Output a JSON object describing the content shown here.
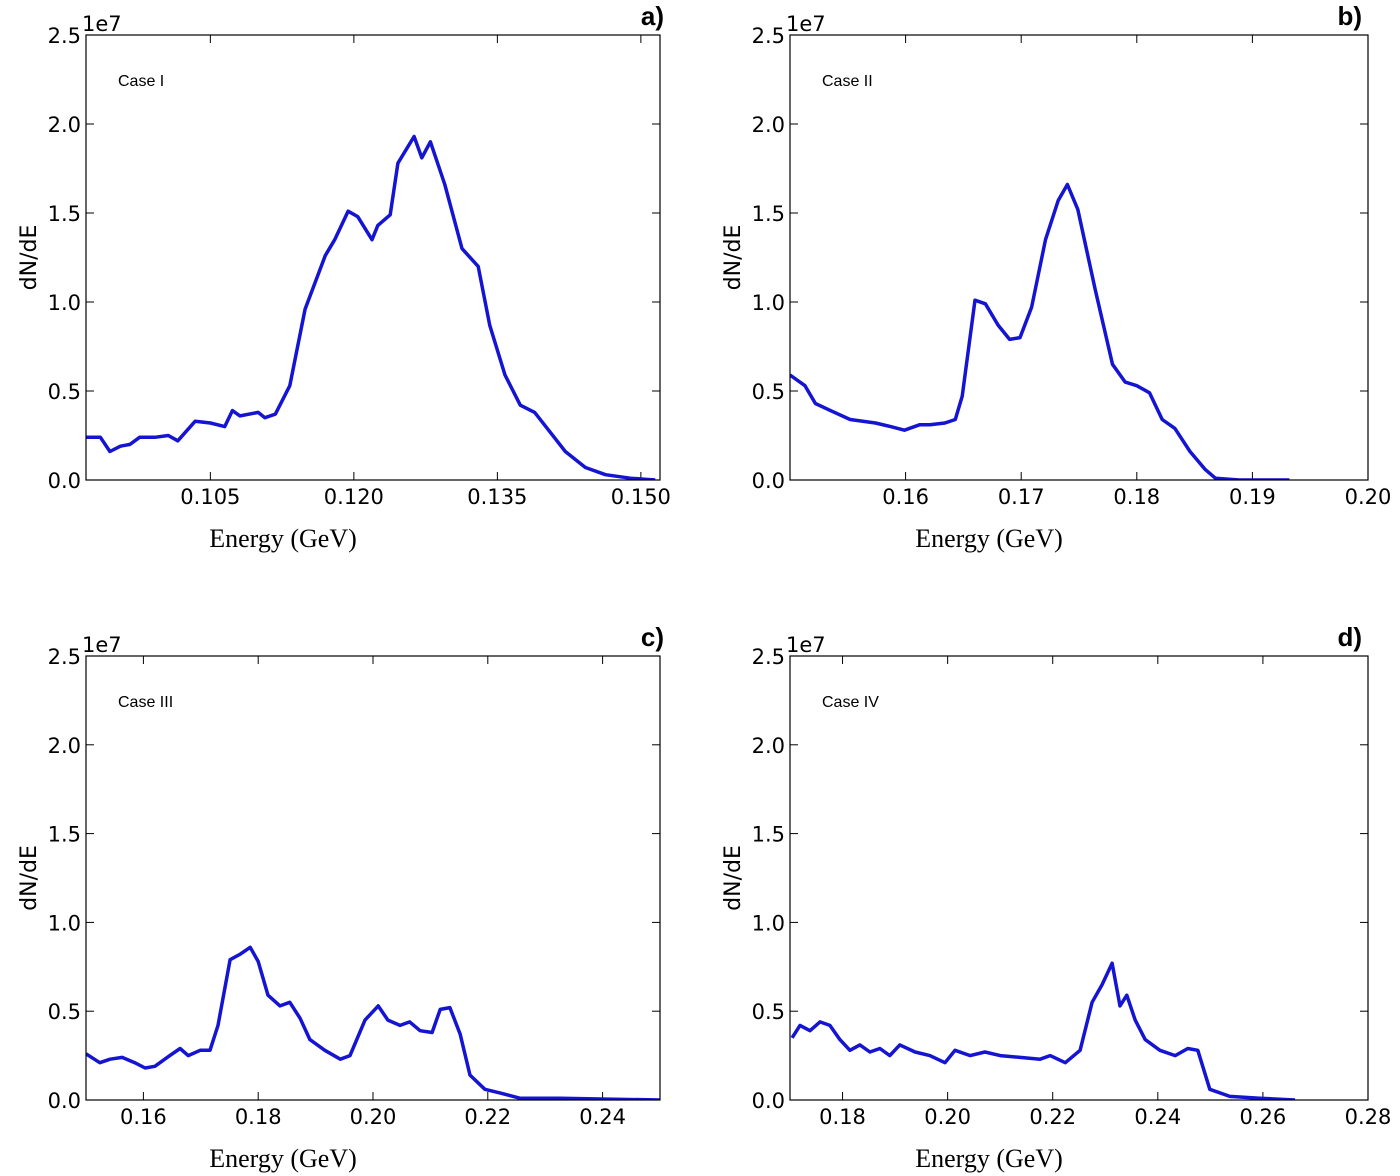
{
  "chart_data": [
    {
      "type": "line",
      "panel_label": "a)",
      "annotation": "Case I",
      "xlabel": "Energy (GeV)",
      "ylabel": "dN/dE",
      "y_offset_label": "1e7",
      "color": "#1414d2",
      "xlim": [
        0.092,
        0.152
      ],
      "xticks": [
        0.105,
        {
          "value": 0.12,
          "label": "0.120"
        },
        0.135,
        {
          "value": 0.15,
          "label": "0.150"
        }
      ],
      "ylim": [
        0,
        2.5
      ],
      "yticks": [
        {
          "value": 0,
          "label": "0.0"
        },
        0.5,
        {
          "value": 1,
          "label": "1.0"
        },
        1.5,
        {
          "value": 2,
          "label": "2.0"
        },
        2.5
      ],
      "x": [
        0.092,
        0.0935,
        0.0945,
        0.0956,
        0.0966,
        0.0976,
        0.0992,
        0.1006,
        0.1016,
        0.1034,
        0.105,
        0.1065,
        0.1073,
        0.1081,
        0.11,
        0.1107,
        0.1118,
        0.1133,
        0.1149,
        0.117,
        0.118,
        0.1194,
        0.1204,
        0.1219,
        0.1225,
        0.1238,
        0.1246,
        0.1263,
        0.1271,
        0.128,
        0.1295,
        0.1313,
        0.133,
        0.1342,
        0.1358,
        0.1374,
        0.1389,
        0.1405,
        0.1421,
        0.1442,
        0.1463,
        0.1489,
        0.1515
      ],
      "values": [
        0.24,
        0.24,
        0.16,
        0.19,
        0.2,
        0.24,
        0.24,
        0.25,
        0.22,
        0.33,
        0.32,
        0.3,
        0.39,
        0.36,
        0.38,
        0.35,
        0.37,
        0.53,
        0.96,
        1.26,
        1.35,
        1.51,
        1.48,
        1.35,
        1.43,
        1.49,
        1.78,
        1.93,
        1.81,
        1.9,
        1.66,
        1.3,
        1.2,
        0.87,
        0.59,
        0.42,
        0.38,
        0.27,
        0.16,
        0.07,
        0.03,
        0.01,
        0
      ]
    },
    {
      "type": "line",
      "panel_label": "b)",
      "annotation": "Case II",
      "xlabel": "Energy (GeV)",
      "ylabel": "dN/dE",
      "y_offset_label": "1e7",
      "color": "#1414d2",
      "xlim": [
        0.15,
        0.2
      ],
      "xticks": [
        0.16,
        0.17,
        0.18,
        0.19,
        {
          "value": 0.2,
          "label": "0.20"
        }
      ],
      "ylim": [
        0,
        2.5
      ],
      "yticks": [
        {
          "value": 0,
          "label": "0.0"
        },
        0.5,
        {
          "value": 1,
          "label": "1.0"
        },
        1.5,
        {
          "value": 2,
          "label": "2.0"
        },
        2.5
      ],
      "x": [
        0.15,
        0.1513,
        0.1522,
        0.1535,
        0.1552,
        0.1574,
        0.1587,
        0.1599,
        0.1612,
        0.1621,
        0.1634,
        0.1643,
        0.1649,
        0.166,
        0.1669,
        0.168,
        0.169,
        0.1699,
        0.1709,
        0.1721,
        0.1732,
        0.174,
        0.1749,
        0.1764,
        0.1779,
        0.179,
        0.18,
        0.1811,
        0.1822,
        0.1833,
        0.1846,
        0.1859,
        0.1868,
        0.1889,
        0.1932
      ],
      "values": [
        0.59,
        0.53,
        0.43,
        0.39,
        0.34,
        0.32,
        0.3,
        0.28,
        0.31,
        0.31,
        0.32,
        0.34,
        0.47,
        1.01,
        0.99,
        0.87,
        0.79,
        0.8,
        0.97,
        1.35,
        1.57,
        1.66,
        1.52,
        1.07,
        0.65,
        0.55,
        0.53,
        0.49,
        0.34,
        0.29,
        0.16,
        0.06,
        0.01,
        0,
        0
      ]
    },
    {
      "type": "line",
      "panel_label": "c)",
      "annotation": "Case III",
      "xlabel": "Energy (GeV)",
      "ylabel": "dN/dE",
      "y_offset_label": "1e7",
      "color": "#1414d2",
      "xlim": [
        0.15,
        0.25
      ],
      "xticks": [
        0.16,
        0.18,
        {
          "value": 0.2,
          "label": "0.20"
        },
        0.22,
        0.24
      ],
      "ylim": [
        0,
        2.5
      ],
      "yticks": [
        {
          "value": 0,
          "label": "0.0"
        },
        0.5,
        {
          "value": 1,
          "label": "1.0"
        },
        1.5,
        {
          "value": 2,
          "label": "2.0"
        },
        2.5
      ],
      "x": [
        0.15,
        0.1524,
        0.1542,
        0.1563,
        0.1585,
        0.1603,
        0.162,
        0.1646,
        0.1664,
        0.1678,
        0.1699,
        0.1716,
        0.173,
        0.1751,
        0.1768,
        0.1786,
        0.18,
        0.1817,
        0.1838,
        0.1855,
        0.1873,
        0.189,
        0.1916,
        0.1943,
        0.196,
        0.1986,
        0.2009,
        0.2026,
        0.2047,
        0.2064,
        0.2082,
        0.2103,
        0.2117,
        0.2134,
        0.2152,
        0.2169,
        0.2195,
        0.2221,
        0.2256,
        0.2326,
        0.25
      ],
      "values": [
        0.26,
        0.21,
        0.23,
        0.24,
        0.21,
        0.18,
        0.19,
        0.25,
        0.29,
        0.25,
        0.28,
        0.28,
        0.42,
        0.79,
        0.82,
        0.86,
        0.78,
        0.59,
        0.53,
        0.55,
        0.46,
        0.34,
        0.28,
        0.23,
        0.25,
        0.45,
        0.53,
        0.45,
        0.42,
        0.44,
        0.39,
        0.38,
        0.51,
        0.52,
        0.37,
        0.14,
        0.06,
        0.04,
        0.01,
        0.01,
        0
      ]
    },
    {
      "type": "line",
      "panel_label": "d)",
      "annotation": "Case IV",
      "xlabel": "Energy (GeV)",
      "ylabel": "dN/dE",
      "y_offset_label": "1e7",
      "color": "#1414d2",
      "xlim": [
        0.17,
        0.28
      ],
      "xticks": [
        0.18,
        {
          "value": 0.2,
          "label": "0.20"
        },
        0.22,
        0.24,
        0.26,
        0.28
      ],
      "ylim": [
        0,
        2.5
      ],
      "yticks": [
        {
          "value": 0,
          "label": "0.0"
        },
        0.5,
        {
          "value": 1,
          "label": "1.0"
        },
        1.5,
        {
          "value": 2,
          "label": "2.0"
        },
        2.5
      ],
      "x": [
        0.1704,
        0.1719,
        0.1738,
        0.1757,
        0.1776,
        0.1795,
        0.1814,
        0.1833,
        0.1852,
        0.1871,
        0.189,
        0.1909,
        0.1938,
        0.1966,
        0.1995,
        0.2014,
        0.2043,
        0.2071,
        0.21,
        0.2138,
        0.2176,
        0.2195,
        0.2224,
        0.2252,
        0.2275,
        0.2294,
        0.2313,
        0.2328,
        0.2341,
        0.2357,
        0.2376,
        0.2404,
        0.2433,
        0.2457,
        0.2476,
        0.2499,
        0.2537,
        0.2594,
        0.2661
      ],
      "values": [
        0.35,
        0.42,
        0.39,
        0.44,
        0.42,
        0.34,
        0.28,
        0.31,
        0.27,
        0.29,
        0.25,
        0.31,
        0.27,
        0.25,
        0.21,
        0.28,
        0.25,
        0.27,
        0.25,
        0.24,
        0.23,
        0.25,
        0.21,
        0.28,
        0.55,
        0.65,
        0.77,
        0.53,
        0.59,
        0.45,
        0.34,
        0.28,
        0.25,
        0.29,
        0.28,
        0.06,
        0.02,
        0.01,
        0
      ]
    }
  ]
}
